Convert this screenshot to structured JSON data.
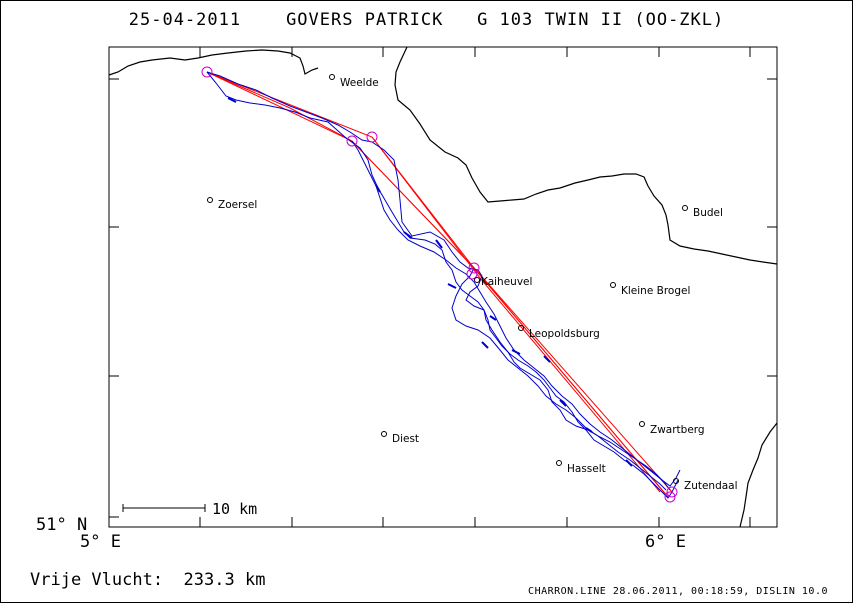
{
  "title": {
    "date": "25-04-2011",
    "pilot": "GOVERS PATRICK",
    "glider": "G 103 TWIN II (OO-ZKL)"
  },
  "map": {
    "cities": [
      "Weelde",
      "Zoersel",
      "Budel",
      "Kaiheuvel",
      "Kleine Brogel",
      "Leopoldsburg",
      "Zwartberg",
      "Diest",
      "Hasselt",
      "Zutendaal"
    ],
    "scale_label": "10 km",
    "lat_label": "51° N",
    "lon_labels": [
      "5° E",
      "6° E"
    ],
    "colors": {
      "track": "#0000cc",
      "task": "#ff0000",
      "turnpoint": "#cc00cc",
      "border": "#000000"
    }
  },
  "flight": {
    "label": "Vrije Vlucht:",
    "distance": "233.3 km"
  },
  "footer": "CHARRON.LINE 28.06.2011, 00:18:59, DISLIN 10.0"
}
